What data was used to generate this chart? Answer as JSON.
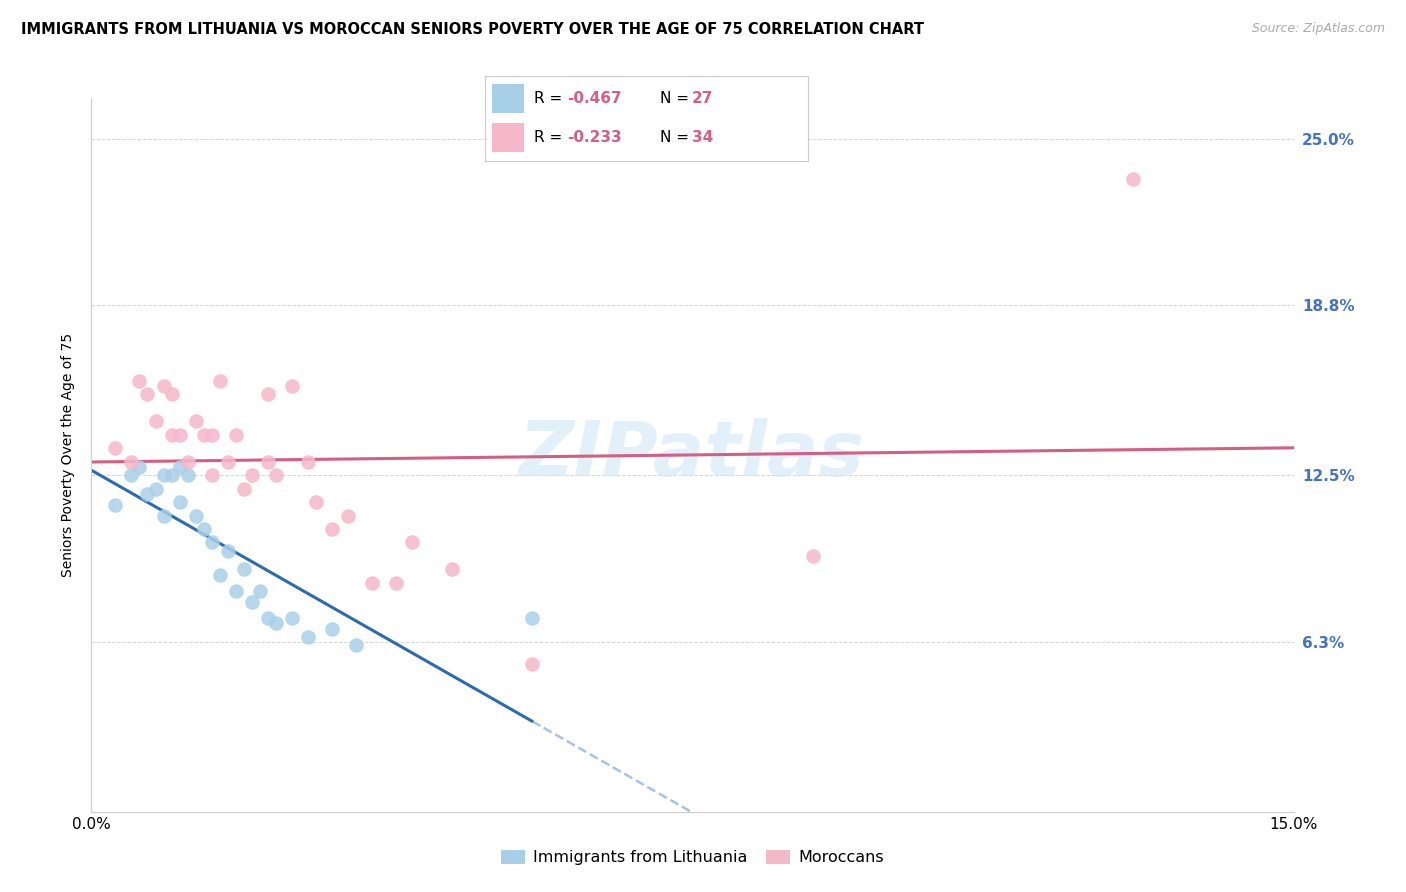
{
  "title": "IMMIGRANTS FROM LITHUANIA VS MOROCCAN SENIORS POVERTY OVER THE AGE OF 75 CORRELATION CHART",
  "source": "Source: ZipAtlas.com",
  "ylabel": "Seniors Poverty Over the Age of 75",
  "xlim": [
    0.0,
    0.15
  ],
  "ylim": [
    0.0,
    0.265
  ],
  "ytick_vals": [
    0.063,
    0.125,
    0.188,
    0.25
  ],
  "ytick_labels": [
    "6.3%",
    "12.5%",
    "18.8%",
    "25.0%"
  ],
  "xtick_vals": [
    0.0,
    0.025,
    0.05,
    0.075,
    0.1,
    0.125,
    0.15
  ],
  "xtick_labels": [
    "0.0%",
    "",
    "",
    "",
    "",
    "",
    "15.0%"
  ],
  "blue_color": "#a8cfe8",
  "pink_color": "#f5b8cb",
  "blue_line_color": "#2b6cb0",
  "pink_line_color": "#d45f82",
  "ytick_color": "#4472c4",
  "watermark_color": "#d0e8f5",
  "legend_label_blue": "Immigrants from Lithuania",
  "legend_label_pink": "Moroccans",
  "legend_r_blue": "-0.467",
  "legend_n_blue": "27",
  "legend_r_pink": "-0.233",
  "legend_n_pink": "34",
  "legend_val_color": "#d45f82",
  "blue_scatter_x": [
    0.003,
    0.005,
    0.006,
    0.007,
    0.008,
    0.009,
    0.009,
    0.01,
    0.011,
    0.011,
    0.012,
    0.013,
    0.014,
    0.015,
    0.016,
    0.017,
    0.018,
    0.019,
    0.02,
    0.021,
    0.022,
    0.023,
    0.025,
    0.027,
    0.03,
    0.033,
    0.055
  ],
  "blue_scatter_y": [
    0.114,
    0.125,
    0.128,
    0.118,
    0.12,
    0.125,
    0.11,
    0.125,
    0.128,
    0.115,
    0.125,
    0.11,
    0.105,
    0.1,
    0.088,
    0.097,
    0.082,
    0.09,
    0.078,
    0.082,
    0.072,
    0.07,
    0.072,
    0.065,
    0.068,
    0.062,
    0.072
  ],
  "pink_scatter_x": [
    0.003,
    0.005,
    0.006,
    0.007,
    0.008,
    0.009,
    0.01,
    0.01,
    0.011,
    0.012,
    0.013,
    0.014,
    0.015,
    0.015,
    0.016,
    0.017,
    0.018,
    0.019,
    0.02,
    0.022,
    0.022,
    0.023,
    0.025,
    0.027,
    0.028,
    0.03,
    0.032,
    0.035,
    0.038,
    0.04,
    0.045,
    0.055,
    0.09,
    0.13
  ],
  "pink_scatter_y": [
    0.135,
    0.13,
    0.16,
    0.155,
    0.145,
    0.158,
    0.155,
    0.14,
    0.14,
    0.13,
    0.145,
    0.14,
    0.14,
    0.125,
    0.16,
    0.13,
    0.14,
    0.12,
    0.125,
    0.13,
    0.155,
    0.125,
    0.158,
    0.13,
    0.115,
    0.105,
    0.11,
    0.085,
    0.085,
    0.1,
    0.09,
    0.055,
    0.095,
    0.235
  ]
}
